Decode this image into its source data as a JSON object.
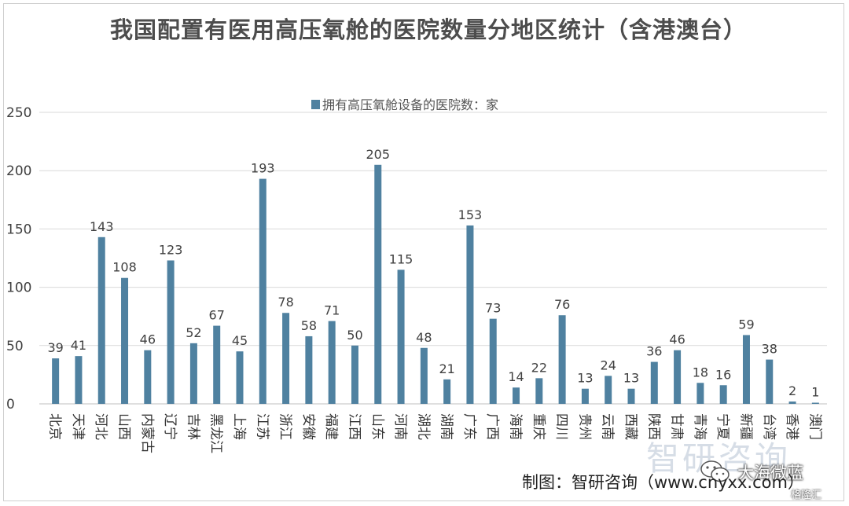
{
  "title": "我国配置有医用高压氧舱的医院数量分地区统计（含港澳台）",
  "credit": "制图：智研咨询（www.cnyxx.com）",
  "watermarks": {
    "zhiyan": "智研咨询",
    "dahai": "大海微蓝",
    "gelonghui": "格隆汇"
  },
  "colors": {
    "bar": "#4f81a0",
    "grid": "#d9d9d9",
    "text": "#404040",
    "title": "#4d4d4d"
  },
  "chart_data": {
    "type": "bar",
    "ylim": [
      0,
      250
    ],
    "yticks": [
      0,
      50,
      100,
      150,
      200,
      250
    ],
    "grid": true,
    "legend_position": "top",
    "categories": [
      "北京",
      "天津",
      "河北",
      "山西",
      "内蒙古",
      "辽宁",
      "吉林",
      "黑龙江",
      "上海",
      "江苏",
      "浙江",
      "安徽",
      "福建",
      "江西",
      "山东",
      "河南",
      "湖北",
      "湖南",
      "广东",
      "广西",
      "海南",
      "重庆",
      "四川",
      "贵州",
      "云南",
      "西藏",
      "陕西",
      "甘肃",
      "青海",
      "宁夏",
      "新疆",
      "台湾",
      "香港",
      "澳门"
    ],
    "series": [
      {
        "name": "拥有高压氧舱设备的医院数：家",
        "values": [
          39,
          41,
          143,
          108,
          46,
          123,
          52,
          67,
          45,
          193,
          78,
          58,
          71,
          50,
          205,
          115,
          48,
          21,
          153,
          73,
          14,
          22,
          76,
          13,
          24,
          13,
          36,
          46,
          18,
          16,
          59,
          38,
          2,
          1
        ]
      }
    ]
  }
}
